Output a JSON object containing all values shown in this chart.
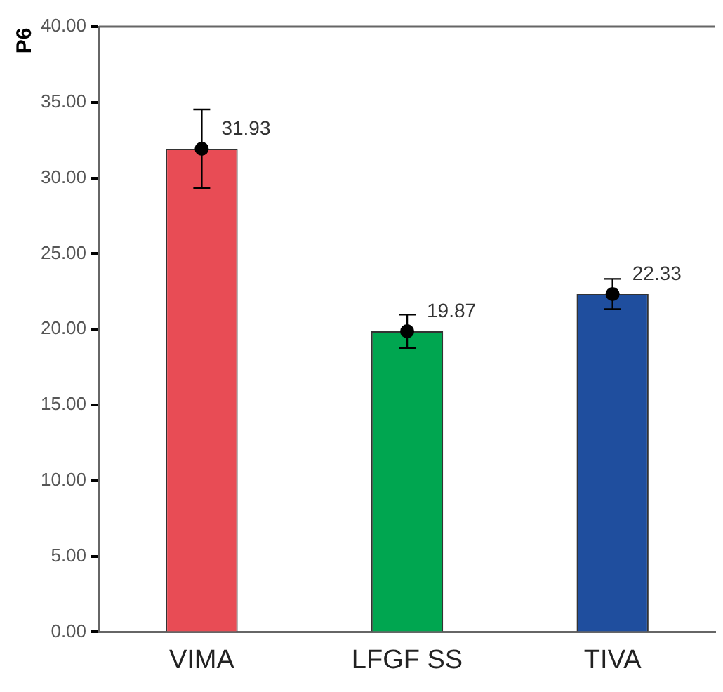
{
  "chart_data": {
    "type": "bar",
    "ylabel": "P6",
    "categories": [
      "VIMA",
      "LFGF SS",
      "TIVA"
    ],
    "series": [
      {
        "colors": [
          "#e84c55",
          "#00a650",
          "#1f4e9e"
        ],
        "values": [
          31.93,
          19.87,
          22.33
        ],
        "errors": [
          2.6,
          1.1,
          1.0
        ]
      },
      {
        "type": "scatter",
        "color": "#000000",
        "x": [
          "VIMA",
          "LFGF SS",
          "TIVA"
        ],
        "values": [
          31.93,
          19.87,
          22.33
        ],
        "value_labels": [
          "31.93",
          "19.87",
          "22.33"
        ],
        "marker": "circle"
      }
    ],
    "ylim": [
      0,
      40
    ],
    "yticks": [
      {
        "value": 0,
        "label": "0.00"
      },
      {
        "value": 5,
        "label": "5.00"
      },
      {
        "value": 10,
        "label": "10.00"
      },
      {
        "value": 15,
        "label": "15.00"
      },
      {
        "value": 20,
        "label": "20.00"
      },
      {
        "value": 25,
        "label": "25.00"
      },
      {
        "value": 30,
        "label": "30.00"
      },
      {
        "value": 35,
        "label": "35.00"
      },
      {
        "value": 40,
        "label": "40.00"
      }
    ],
    "grid": false,
    "legend": false
  }
}
